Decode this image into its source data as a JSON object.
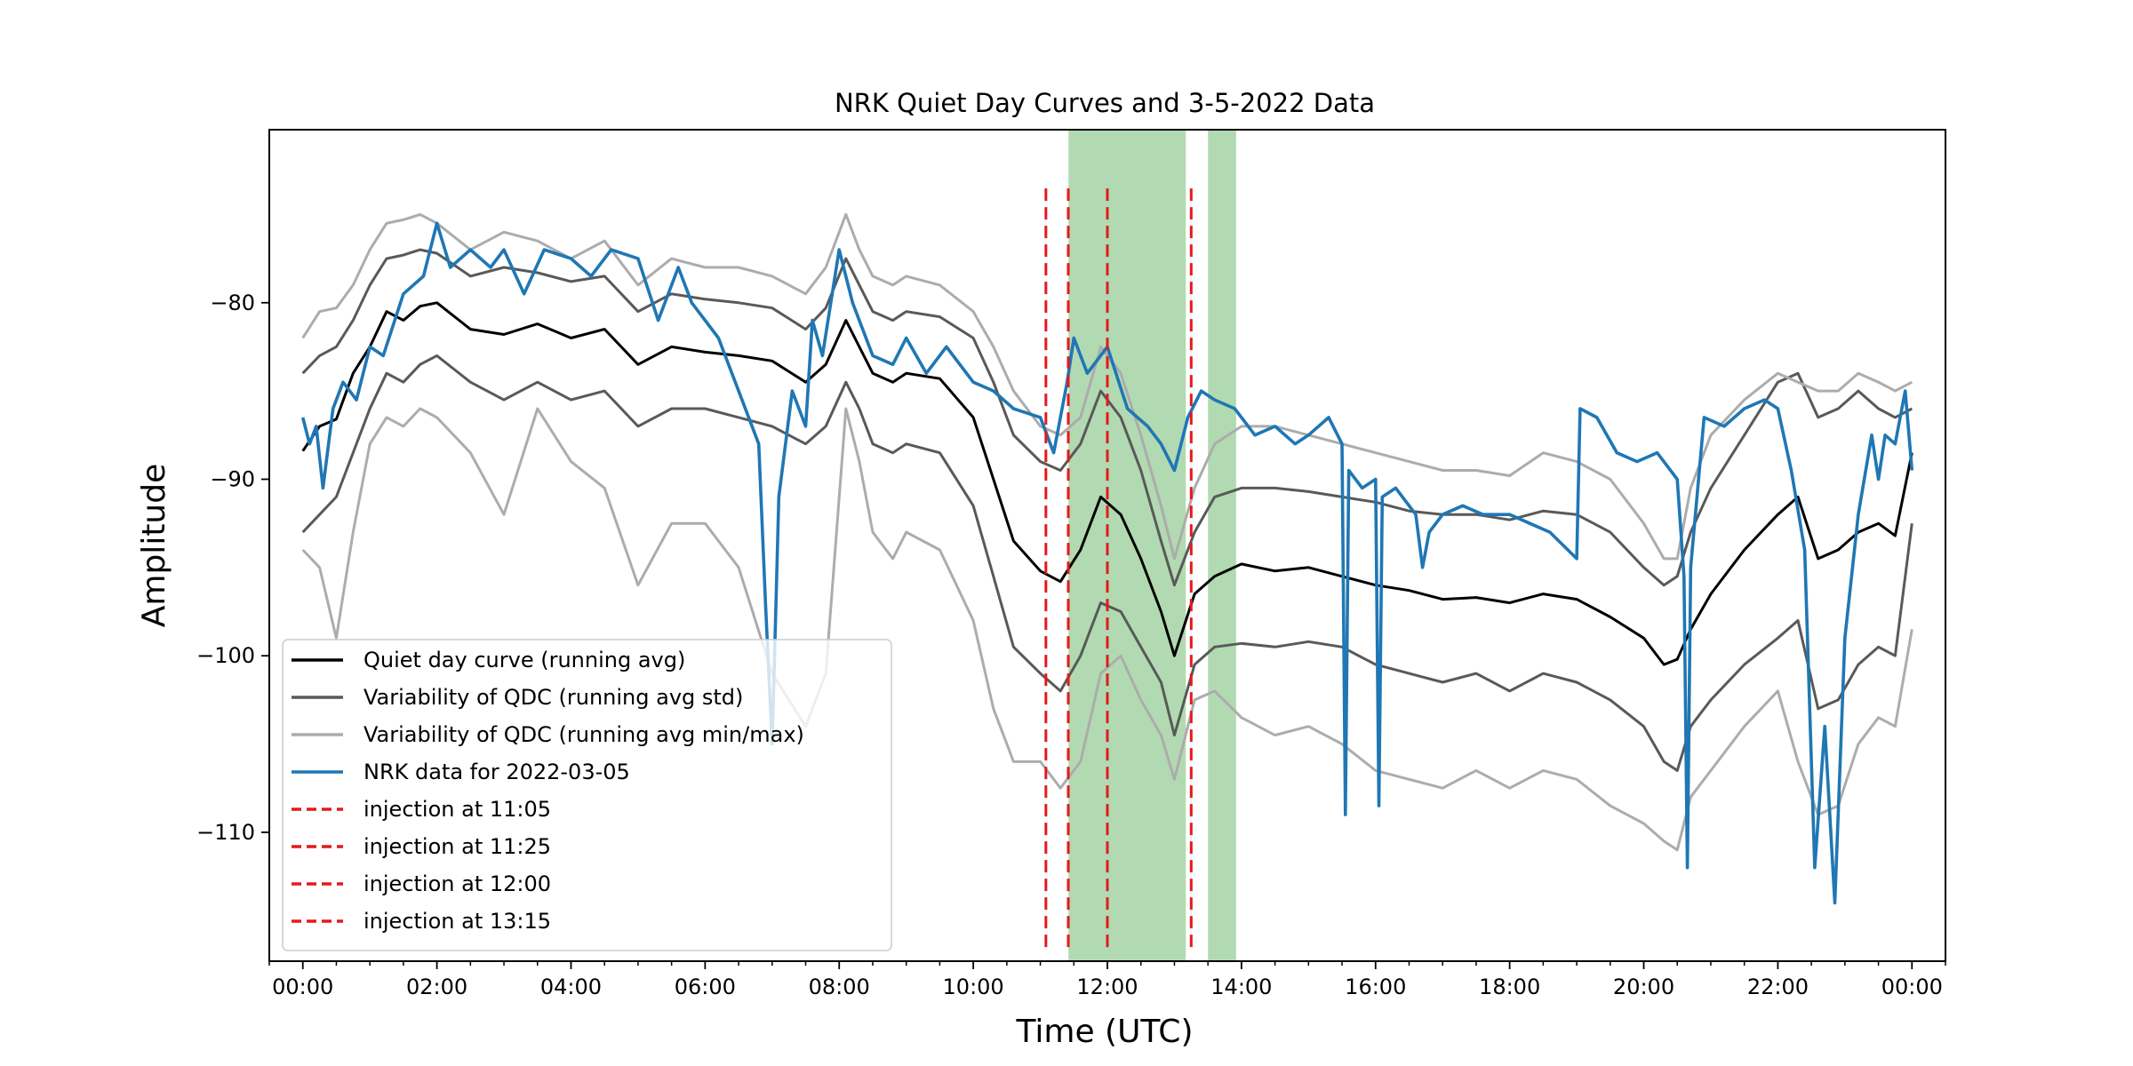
{
  "chart_data": {
    "type": "line",
    "title": "NRK Quiet Day Curves and 3-5-2022 Data",
    "xlabel": "Time (UTC)",
    "ylabel": "Amplitude",
    "x_unit": "hours UTC",
    "xlim": [
      -0.5,
      24.5
    ],
    "ylim": [
      -117.3,
      -70.2
    ],
    "x_major_ticks": [
      0,
      2,
      4,
      6,
      8,
      10,
      12,
      14,
      16,
      18,
      20,
      22,
      24
    ],
    "x_tick_labels": [
      "00:00",
      "02:00",
      "04:00",
      "06:00",
      "08:00",
      "10:00",
      "12:00",
      "14:00",
      "16:00",
      "18:00",
      "20:00",
      "22:00",
      "00:00"
    ],
    "x_minor_step_hours": 0.5,
    "y_ticks": [
      -110,
      -100,
      -90,
      -80
    ],
    "y_tick_labels": [
      "−110",
      "−100",
      "−90",
      "−80"
    ],
    "grid": false,
    "legend_position": "lower-left",
    "shaded_intervals": [
      {
        "start": 11.42,
        "end": 13.17,
        "color": "#b2dab2"
      },
      {
        "start": 13.5,
        "end": 13.92,
        "color": "#b2dab2"
      }
    ],
    "series": [
      {
        "name": "Quiet day curve (running avg)",
        "color": "#000000",
        "style": "solid",
        "legend": true,
        "x": [
          0.0,
          0.25,
          0.5,
          0.75,
          1.0,
          1.25,
          1.5,
          1.75,
          2.0,
          2.5,
          3.0,
          3.5,
          4.0,
          4.5,
          5.0,
          5.5,
          6.0,
          6.5,
          7.0,
          7.5,
          7.8,
          8.1,
          8.3,
          8.5,
          8.8,
          9.0,
          9.5,
          10.0,
          10.3,
          10.6,
          11.0,
          11.3,
          11.6,
          11.9,
          12.2,
          12.5,
          12.8,
          13.0,
          13.3,
          13.6,
          14.0,
          14.5,
          15.0,
          15.5,
          16.0,
          16.5,
          17.0,
          17.5,
          18.0,
          18.5,
          19.0,
          19.5,
          20.0,
          20.3,
          20.5,
          20.7,
          21.0,
          21.5,
          22.0,
          22.3,
          22.6,
          22.9,
          23.2,
          23.5,
          23.75,
          24.0
        ],
        "y": [
          -88.4,
          -87.0,
          -86.6,
          -84.0,
          -82.5,
          -80.5,
          -81.0,
          -80.2,
          -80.0,
          -81.5,
          -81.8,
          -81.2,
          -82.0,
          -81.5,
          -83.5,
          -82.5,
          -82.8,
          -83.0,
          -83.3,
          -84.5,
          -83.5,
          -81.0,
          -82.5,
          -84.0,
          -84.5,
          -84.0,
          -84.3,
          -86.5,
          -90.0,
          -93.5,
          -95.2,
          -95.8,
          -94.0,
          -91.0,
          -92.0,
          -94.5,
          -97.5,
          -100.0,
          -96.5,
          -95.5,
          -94.8,
          -95.2,
          -95.0,
          -95.5,
          -96.0,
          -96.3,
          -96.8,
          -96.7,
          -97.0,
          -96.5,
          -96.8,
          -97.8,
          -99.0,
          -100.5,
          -100.2,
          -98.5,
          -96.5,
          -94.0,
          -92.0,
          -91.0,
          -94.5,
          -94.0,
          -93.0,
          -92.5,
          -93.2,
          -88.5
        ]
      },
      {
        "name": "Variability of QDC (running avg std)",
        "color": "#595959",
        "style": "solid",
        "legend": true,
        "x": [
          0.0,
          0.25,
          0.5,
          0.75,
          1.0,
          1.25,
          1.5,
          1.75,
          2.0,
          2.5,
          3.0,
          3.5,
          4.0,
          4.5,
          5.0,
          5.5,
          6.0,
          6.5,
          7.0,
          7.5,
          7.8,
          8.1,
          8.3,
          8.5,
          8.8,
          9.0,
          9.5,
          10.0,
          10.3,
          10.6,
          11.0,
          11.3,
          11.6,
          11.9,
          12.2,
          12.5,
          12.8,
          13.0,
          13.3,
          13.6,
          14.0,
          14.5,
          15.0,
          15.5,
          16.0,
          16.5,
          17.0,
          17.5,
          18.0,
          18.5,
          19.0,
          19.5,
          20.0,
          20.3,
          20.5,
          20.7,
          21.0,
          21.5,
          22.0,
          22.3,
          22.6,
          22.9,
          23.2,
          23.5,
          23.75,
          24.0
        ],
        "y": [
          -84.0,
          -83.0,
          -82.5,
          -81.0,
          -79.0,
          -77.5,
          -77.3,
          -77.0,
          -77.2,
          -78.5,
          -78.0,
          -78.3,
          -78.8,
          -78.5,
          -80.5,
          -79.5,
          -79.8,
          -80.0,
          -80.3,
          -81.5,
          -80.3,
          -77.5,
          -79.0,
          -80.5,
          -81.0,
          -80.5,
          -80.8,
          -82.0,
          -84.5,
          -87.5,
          -89.0,
          -89.5,
          -88.0,
          -85.0,
          -86.5,
          -89.5,
          -93.5,
          -96.0,
          -93.0,
          -91.0,
          -90.5,
          -90.5,
          -90.7,
          -91.0,
          -91.3,
          -91.8,
          -92.0,
          -92.0,
          -92.3,
          -91.8,
          -92.0,
          -93.0,
          -95.0,
          -96.0,
          -95.5,
          -93.0,
          -90.5,
          -87.5,
          -84.5,
          -84.0,
          -86.5,
          -86.0,
          -85.0,
          -86.0,
          -86.5,
          -86.0
        ]
      },
      {
        "name": "",
        "color": "#595959",
        "style": "solid",
        "legend": false,
        "x": [
          0.0,
          0.25,
          0.5,
          0.75,
          1.0,
          1.25,
          1.5,
          1.75,
          2.0,
          2.5,
          3.0,
          3.5,
          4.0,
          4.5,
          5.0,
          5.5,
          6.0,
          6.5,
          7.0,
          7.5,
          7.8,
          8.1,
          8.3,
          8.5,
          8.8,
          9.0,
          9.5,
          10.0,
          10.3,
          10.6,
          11.0,
          11.3,
          11.6,
          11.9,
          12.2,
          12.5,
          12.8,
          13.0,
          13.3,
          13.6,
          14.0,
          14.5,
          15.0,
          15.5,
          16.0,
          16.5,
          17.0,
          17.5,
          18.0,
          18.5,
          19.0,
          19.5,
          20.0,
          20.3,
          20.5,
          20.7,
          21.0,
          21.5,
          22.0,
          22.3,
          22.6,
          22.9,
          23.2,
          23.5,
          23.75,
          24.0
        ],
        "y": [
          -93.0,
          -92.0,
          -91.0,
          -88.5,
          -86.0,
          -84.0,
          -84.5,
          -83.5,
          -83.0,
          -84.5,
          -85.5,
          -84.5,
          -85.5,
          -85.0,
          -87.0,
          -86.0,
          -86.0,
          -86.5,
          -87.0,
          -88.0,
          -87.0,
          -84.5,
          -86.0,
          -88.0,
          -88.5,
          -88.0,
          -88.5,
          -91.5,
          -95.5,
          -99.5,
          -101.0,
          -102.0,
          -100.0,
          -97.0,
          -97.5,
          -99.5,
          -101.5,
          -104.5,
          -100.5,
          -99.5,
          -99.3,
          -99.5,
          -99.2,
          -99.5,
          -100.5,
          -101.0,
          -101.5,
          -101.0,
          -102.0,
          -101.0,
          -101.5,
          -102.5,
          -104.0,
          -106.0,
          -106.5,
          -104.0,
          -102.5,
          -100.5,
          -99.0,
          -98.0,
          -103.0,
          -102.5,
          -100.5,
          -99.5,
          -100.0,
          -92.5
        ]
      },
      {
        "name": "Variability of QDC (running avg min/max)",
        "color": "#acacac",
        "style": "solid",
        "legend": true,
        "x": [
          0.0,
          0.25,
          0.5,
          0.75,
          1.0,
          1.25,
          1.5,
          1.75,
          2.0,
          2.5,
          3.0,
          3.5,
          4.0,
          4.5,
          5.0,
          5.5,
          6.0,
          6.5,
          7.0,
          7.5,
          7.8,
          8.1,
          8.3,
          8.5,
          8.8,
          9.0,
          9.5,
          10.0,
          10.3,
          10.6,
          11.0,
          11.3,
          11.6,
          11.9,
          12.2,
          12.5,
          12.8,
          13.0,
          13.3,
          13.6,
          14.0,
          14.5,
          15.0,
          15.5,
          16.0,
          16.5,
          17.0,
          17.5,
          18.0,
          18.5,
          19.0,
          19.5,
          20.0,
          20.3,
          20.5,
          20.7,
          21.0,
          21.5,
          22.0,
          22.3,
          22.6,
          22.9,
          23.2,
          23.5,
          23.75,
          24.0
        ],
        "y": [
          -82.0,
          -80.5,
          -80.3,
          -79.0,
          -77.0,
          -75.5,
          -75.3,
          -75.0,
          -75.5,
          -77.0,
          -76.0,
          -76.5,
          -77.5,
          -76.5,
          -79.0,
          -77.5,
          -78.0,
          -78.0,
          -78.5,
          -79.5,
          -78.0,
          -75.0,
          -77.0,
          -78.5,
          -79.0,
          -78.5,
          -79.0,
          -80.5,
          -82.5,
          -85.0,
          -87.0,
          -87.5,
          -86.5,
          -82.5,
          -84.0,
          -87.5,
          -91.5,
          -94.5,
          -90.5,
          -88.0,
          -87.0,
          -87.0,
          -87.5,
          -88.0,
          -88.5,
          -89.0,
          -89.5,
          -89.5,
          -89.8,
          -88.5,
          -89.0,
          -90.0,
          -92.5,
          -94.5,
          -94.5,
          -90.5,
          -87.5,
          -85.5,
          -84.0,
          -84.5,
          -85.0,
          -85.0,
          -84.0,
          -84.5,
          -85.0,
          -84.5
        ]
      },
      {
        "name": "",
        "color": "#acacac",
        "style": "solid",
        "legend": false,
        "x": [
          0.0,
          0.25,
          0.5,
          0.75,
          1.0,
          1.25,
          1.5,
          1.75,
          2.0,
          2.5,
          3.0,
          3.5,
          4.0,
          4.5,
          5.0,
          5.5,
          6.0,
          6.5,
          7.0,
          7.5,
          7.8,
          8.1,
          8.3,
          8.5,
          8.8,
          9.0,
          9.5,
          10.0,
          10.3,
          10.6,
          11.0,
          11.3,
          11.6,
          11.9,
          12.2,
          12.5,
          12.8,
          13.0,
          13.3,
          13.6,
          14.0,
          14.5,
          15.0,
          15.5,
          16.0,
          16.5,
          17.0,
          17.5,
          18.0,
          18.5,
          19.0,
          19.5,
          20.0,
          20.3,
          20.5,
          20.7,
          21.0,
          21.5,
          22.0,
          22.3,
          22.6,
          22.9,
          23.2,
          23.5,
          23.75,
          24.0
        ],
        "y": [
          -94.0,
          -95.0,
          -99.0,
          -93.0,
          -88.0,
          -86.5,
          -87.0,
          -86.0,
          -86.5,
          -88.5,
          -92.0,
          -86.0,
          -89.0,
          -90.5,
          -96.0,
          -92.5,
          -92.5,
          -95.0,
          -101.0,
          -104.0,
          -101.0,
          -86.0,
          -89.0,
          -93.0,
          -94.5,
          -93.0,
          -94.0,
          -98.0,
          -103.0,
          -106.0,
          -106.0,
          -107.5,
          -106.0,
          -101.0,
          -100.0,
          -102.5,
          -104.5,
          -107.0,
          -102.5,
          -102.0,
          -103.5,
          -104.5,
          -104.0,
          -105.0,
          -106.5,
          -107.0,
          -107.5,
          -106.5,
          -107.5,
          -106.5,
          -107.0,
          -108.5,
          -109.5,
          -110.5,
          -111.0,
          -108.0,
          -106.5,
          -104.0,
          -102.0,
          -106.0,
          -109.0,
          -108.5,
          -105.0,
          -103.5,
          -104.0,
          -98.5
        ]
      },
      {
        "name": "NRK data for 2022-03-05",
        "color": "#1f77b4",
        "style": "solid",
        "legend": true,
        "x": [
          0.0,
          0.1,
          0.2,
          0.3,
          0.45,
          0.6,
          0.8,
          1.0,
          1.2,
          1.5,
          1.8,
          2.0,
          2.2,
          2.5,
          2.8,
          3.0,
          3.3,
          3.6,
          4.0,
          4.3,
          4.6,
          5.0,
          5.3,
          5.6,
          5.8,
          6.0,
          6.2,
          6.5,
          6.8,
          6.9,
          7.0,
          7.05,
          7.1,
          7.3,
          7.5,
          7.6,
          7.75,
          8.0,
          8.2,
          8.5,
          8.8,
          9.0,
          9.3,
          9.6,
          10.0,
          10.3,
          10.6,
          11.0,
          11.2,
          11.4,
          11.5,
          11.7,
          12.0,
          12.3,
          12.6,
          12.8,
          13.0,
          13.2,
          13.4,
          13.6,
          13.9,
          14.2,
          14.5,
          14.8,
          15.0,
          15.3,
          15.5,
          15.55,
          15.6,
          15.8,
          16.0,
          16.05,
          16.1,
          16.3,
          16.6,
          16.7,
          16.8,
          17.0,
          17.3,
          17.6,
          18.0,
          18.3,
          18.6,
          19.0,
          19.05,
          19.3,
          19.6,
          19.9,
          20.2,
          20.5,
          20.6,
          20.65,
          20.7,
          20.9,
          21.2,
          21.5,
          21.8,
          22.0,
          22.2,
          22.4,
          22.55,
          22.7,
          22.85,
          23.0,
          23.2,
          23.4,
          23.5,
          23.6,
          23.75,
          23.9,
          24.0
        ],
        "y": [
          -86.5,
          -88.0,
          -87.0,
          -90.5,
          -86.0,
          -84.5,
          -85.5,
          -82.5,
          -83.0,
          -79.5,
          -78.5,
          -75.5,
          -78.0,
          -77.0,
          -78.0,
          -77.0,
          -79.5,
          -77.0,
          -77.5,
          -78.5,
          -77.0,
          -77.5,
          -81.0,
          -78.0,
          -80.0,
          -81.0,
          -82.0,
          -85.0,
          -88.0,
          -97.0,
          -105.0,
          -98.0,
          -91.0,
          -85.0,
          -87.0,
          -81.0,
          -83.0,
          -77.0,
          -80.0,
          -83.0,
          -83.5,
          -82.0,
          -84.0,
          -82.5,
          -84.5,
          -85.0,
          -86.0,
          -86.5,
          -88.5,
          -84.5,
          -82.0,
          -84.0,
          -82.5,
          -86.0,
          -87.0,
          -88.0,
          -89.5,
          -86.5,
          -85.0,
          -85.5,
          -86.0,
          -87.5,
          -87.0,
          -88.0,
          -87.5,
          -86.5,
          -88.0,
          -109.0,
          -89.5,
          -90.5,
          -90.0,
          -108.5,
          -91.0,
          -90.5,
          -92.0,
          -95.0,
          -93.0,
          -92.0,
          -91.5,
          -92.0,
          -92.0,
          -92.5,
          -93.0,
          -94.5,
          -86.0,
          -86.5,
          -88.5,
          -89.0,
          -88.5,
          -90.0,
          -95.5,
          -112.0,
          -95.0,
          -86.5,
          -87.0,
          -86.0,
          -85.5,
          -86.0,
          -89.5,
          -94.0,
          -112.0,
          -104.0,
          -114.0,
          -99.0,
          -92.0,
          -87.5,
          -90.0,
          -87.5,
          -88.0,
          -85.0,
          -89.5
        ]
      }
    ],
    "vlines": [
      {
        "name": "injection at 11:05",
        "x": 11.083,
        "y0": -116.5,
        "y1": -73.2,
        "color": "#e31a1c",
        "style": "dashed"
      },
      {
        "name": "injection at 11:25",
        "x": 11.417,
        "y0": -116.5,
        "y1": -73.2,
        "color": "#e31a1c",
        "style": "dashed"
      },
      {
        "name": "injection at 12:00",
        "x": 12.0,
        "y0": -116.5,
        "y1": -73.2,
        "color": "#e31a1c",
        "style": "dashed"
      },
      {
        "name": "injection at 13:15",
        "x": 13.25,
        "y0": -116.5,
        "y1": -73.2,
        "color": "#e31a1c",
        "style": "dashed"
      }
    ],
    "legend_entries": [
      {
        "label": "Quiet day curve (running avg)",
        "color": "#000000",
        "style": "solid"
      },
      {
        "label": "Variability of QDC (running avg std)",
        "color": "#595959",
        "style": "solid"
      },
      {
        "label": "Variability of QDC (running avg min/max)",
        "color": "#acacac",
        "style": "solid"
      },
      {
        "label": "NRK data for 2022-03-05",
        "color": "#1f77b4",
        "style": "solid"
      },
      {
        "label": "injection at 11:05",
        "color": "#e31a1c",
        "style": "dashed"
      },
      {
        "label": "injection at 11:25",
        "color": "#e31a1c",
        "style": "dashed"
      },
      {
        "label": "injection at 12:00",
        "color": "#e31a1c",
        "style": "dashed"
      },
      {
        "label": "injection at 13:15",
        "color": "#e31a1c",
        "style": "dashed"
      }
    ]
  }
}
